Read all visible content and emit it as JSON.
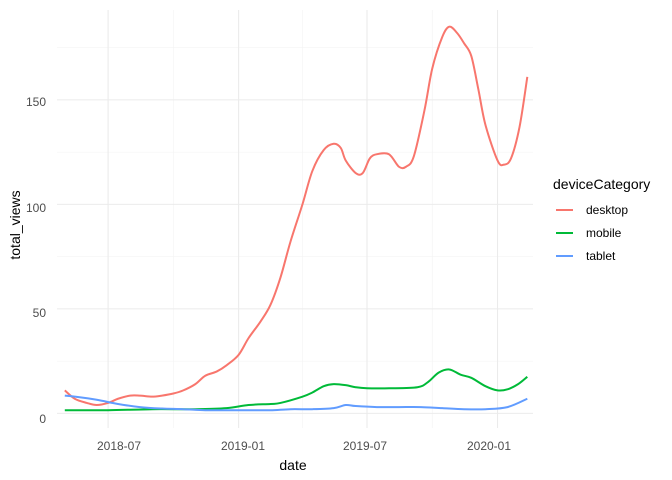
{
  "chart_data": {
    "type": "line",
    "xlabel": "date",
    "ylabel": "total_views",
    "x_ticks": [
      "2018-07",
      "2019-01",
      "2019-07",
      "2020-01"
    ],
    "y_ticks": [
      "0",
      "50",
      "100",
      "150"
    ],
    "xlim": [
      "2018-04-20",
      "2020-02-20"
    ],
    "ylim": [
      -7,
      193
    ],
    "grid": true,
    "legend": {
      "title": "deviceCategory",
      "position": "right"
    },
    "series": [
      {
        "name": "desktop",
        "color": "#F8766D",
        "points": [
          [
            "2018-05-01",
            11
          ],
          [
            "2018-05-15",
            7
          ],
          [
            "2018-06-01",
            5
          ],
          [
            "2018-06-15",
            4
          ],
          [
            "2018-07-01",
            5
          ],
          [
            "2018-07-15",
            7
          ],
          [
            "2018-08-01",
            8.5
          ],
          [
            "2018-08-15",
            8.5
          ],
          [
            "2018-09-01",
            8
          ],
          [
            "2018-09-15",
            8.5
          ],
          [
            "2018-10-01",
            9.5
          ],
          [
            "2018-10-15",
            11
          ],
          [
            "2018-11-01",
            14
          ],
          [
            "2018-11-15",
            18
          ],
          [
            "2018-12-01",
            20
          ],
          [
            "2018-12-15",
            23
          ],
          [
            "2019-01-01",
            28
          ],
          [
            "2019-01-15",
            36
          ],
          [
            "2019-02-01",
            44
          ],
          [
            "2019-02-15",
            52
          ],
          [
            "2019-03-01",
            65
          ],
          [
            "2019-03-15",
            82
          ],
          [
            "2019-04-01",
            100
          ],
          [
            "2019-04-15",
            116
          ],
          [
            "2019-05-01",
            126
          ],
          [
            "2019-05-15",
            129
          ],
          [
            "2019-05-25",
            127
          ],
          [
            "2019-06-01",
            121
          ],
          [
            "2019-06-15",
            115
          ],
          [
            "2019-06-25",
            115
          ],
          [
            "2019-07-05",
            122
          ],
          [
            "2019-07-15",
            124
          ],
          [
            "2019-08-01",
            124
          ],
          [
            "2019-08-15",
            118
          ],
          [
            "2019-08-25",
            118
          ],
          [
            "2019-09-05",
            123
          ],
          [
            "2019-09-20",
            145
          ],
          [
            "2019-10-01",
            165
          ],
          [
            "2019-10-15",
            180
          ],
          [
            "2019-10-25",
            185
          ],
          [
            "2019-11-05",
            182
          ],
          [
            "2019-11-15",
            177
          ],
          [
            "2019-11-25",
            171
          ],
          [
            "2019-12-05",
            155
          ],
          [
            "2019-12-15",
            138
          ],
          [
            "2020-01-01",
            121
          ],
          [
            "2020-01-10",
            119
          ],
          [
            "2020-01-20",
            122
          ],
          [
            "2020-02-01",
            137
          ],
          [
            "2020-02-12",
            161
          ]
        ]
      },
      {
        "name": "mobile",
        "color": "#00BA38",
        "points": [
          [
            "2018-05-01",
            1.5
          ],
          [
            "2018-07-01",
            1.5
          ],
          [
            "2018-09-01",
            2
          ],
          [
            "2018-11-01",
            2
          ],
          [
            "2018-12-15",
            2.5
          ],
          [
            "2019-01-15",
            4
          ],
          [
            "2019-02-15",
            4.5
          ],
          [
            "2019-03-01",
            5
          ],
          [
            "2019-04-01",
            8
          ],
          [
            "2019-04-15",
            10
          ],
          [
            "2019-05-01",
            13
          ],
          [
            "2019-05-15",
            14
          ],
          [
            "2019-06-01",
            13.5
          ],
          [
            "2019-06-15",
            12.5
          ],
          [
            "2019-07-01",
            12
          ],
          [
            "2019-08-01",
            12
          ],
          [
            "2019-09-10",
            12.5
          ],
          [
            "2019-09-25",
            15
          ],
          [
            "2019-10-10",
            19.5
          ],
          [
            "2019-10-25",
            21
          ],
          [
            "2019-11-10",
            18.5
          ],
          [
            "2019-11-25",
            17
          ],
          [
            "2019-12-15",
            13
          ],
          [
            "2020-01-01",
            11
          ],
          [
            "2020-01-15",
            11.5
          ],
          [
            "2020-01-30",
            14
          ],
          [
            "2020-02-12",
            17.5
          ]
        ]
      },
      {
        "name": "tablet",
        "color": "#619CFF",
        "points": [
          [
            "2018-05-01",
            8.5
          ],
          [
            "2018-05-15",
            8
          ],
          [
            "2018-06-15",
            6.5
          ],
          [
            "2018-07-15",
            4.5
          ],
          [
            "2018-08-15",
            3
          ],
          [
            "2018-09-15",
            2.3
          ],
          [
            "2018-10-15",
            2
          ],
          [
            "2018-11-15",
            1.5
          ],
          [
            "2018-12-15",
            1.5
          ],
          [
            "2019-01-15",
            1.5
          ],
          [
            "2019-02-15",
            1.5
          ],
          [
            "2019-03-15",
            2
          ],
          [
            "2019-04-15",
            2
          ],
          [
            "2019-05-15",
            2.5
          ],
          [
            "2019-06-01",
            4
          ],
          [
            "2019-06-15",
            3.5
          ],
          [
            "2019-07-15",
            3
          ],
          [
            "2019-08-15",
            3
          ],
          [
            "2019-09-15",
            3
          ],
          [
            "2019-10-15",
            2.5
          ],
          [
            "2019-11-15",
            2
          ],
          [
            "2019-12-15",
            2
          ],
          [
            "2020-01-15",
            3
          ],
          [
            "2020-02-12",
            7
          ]
        ]
      }
    ]
  }
}
